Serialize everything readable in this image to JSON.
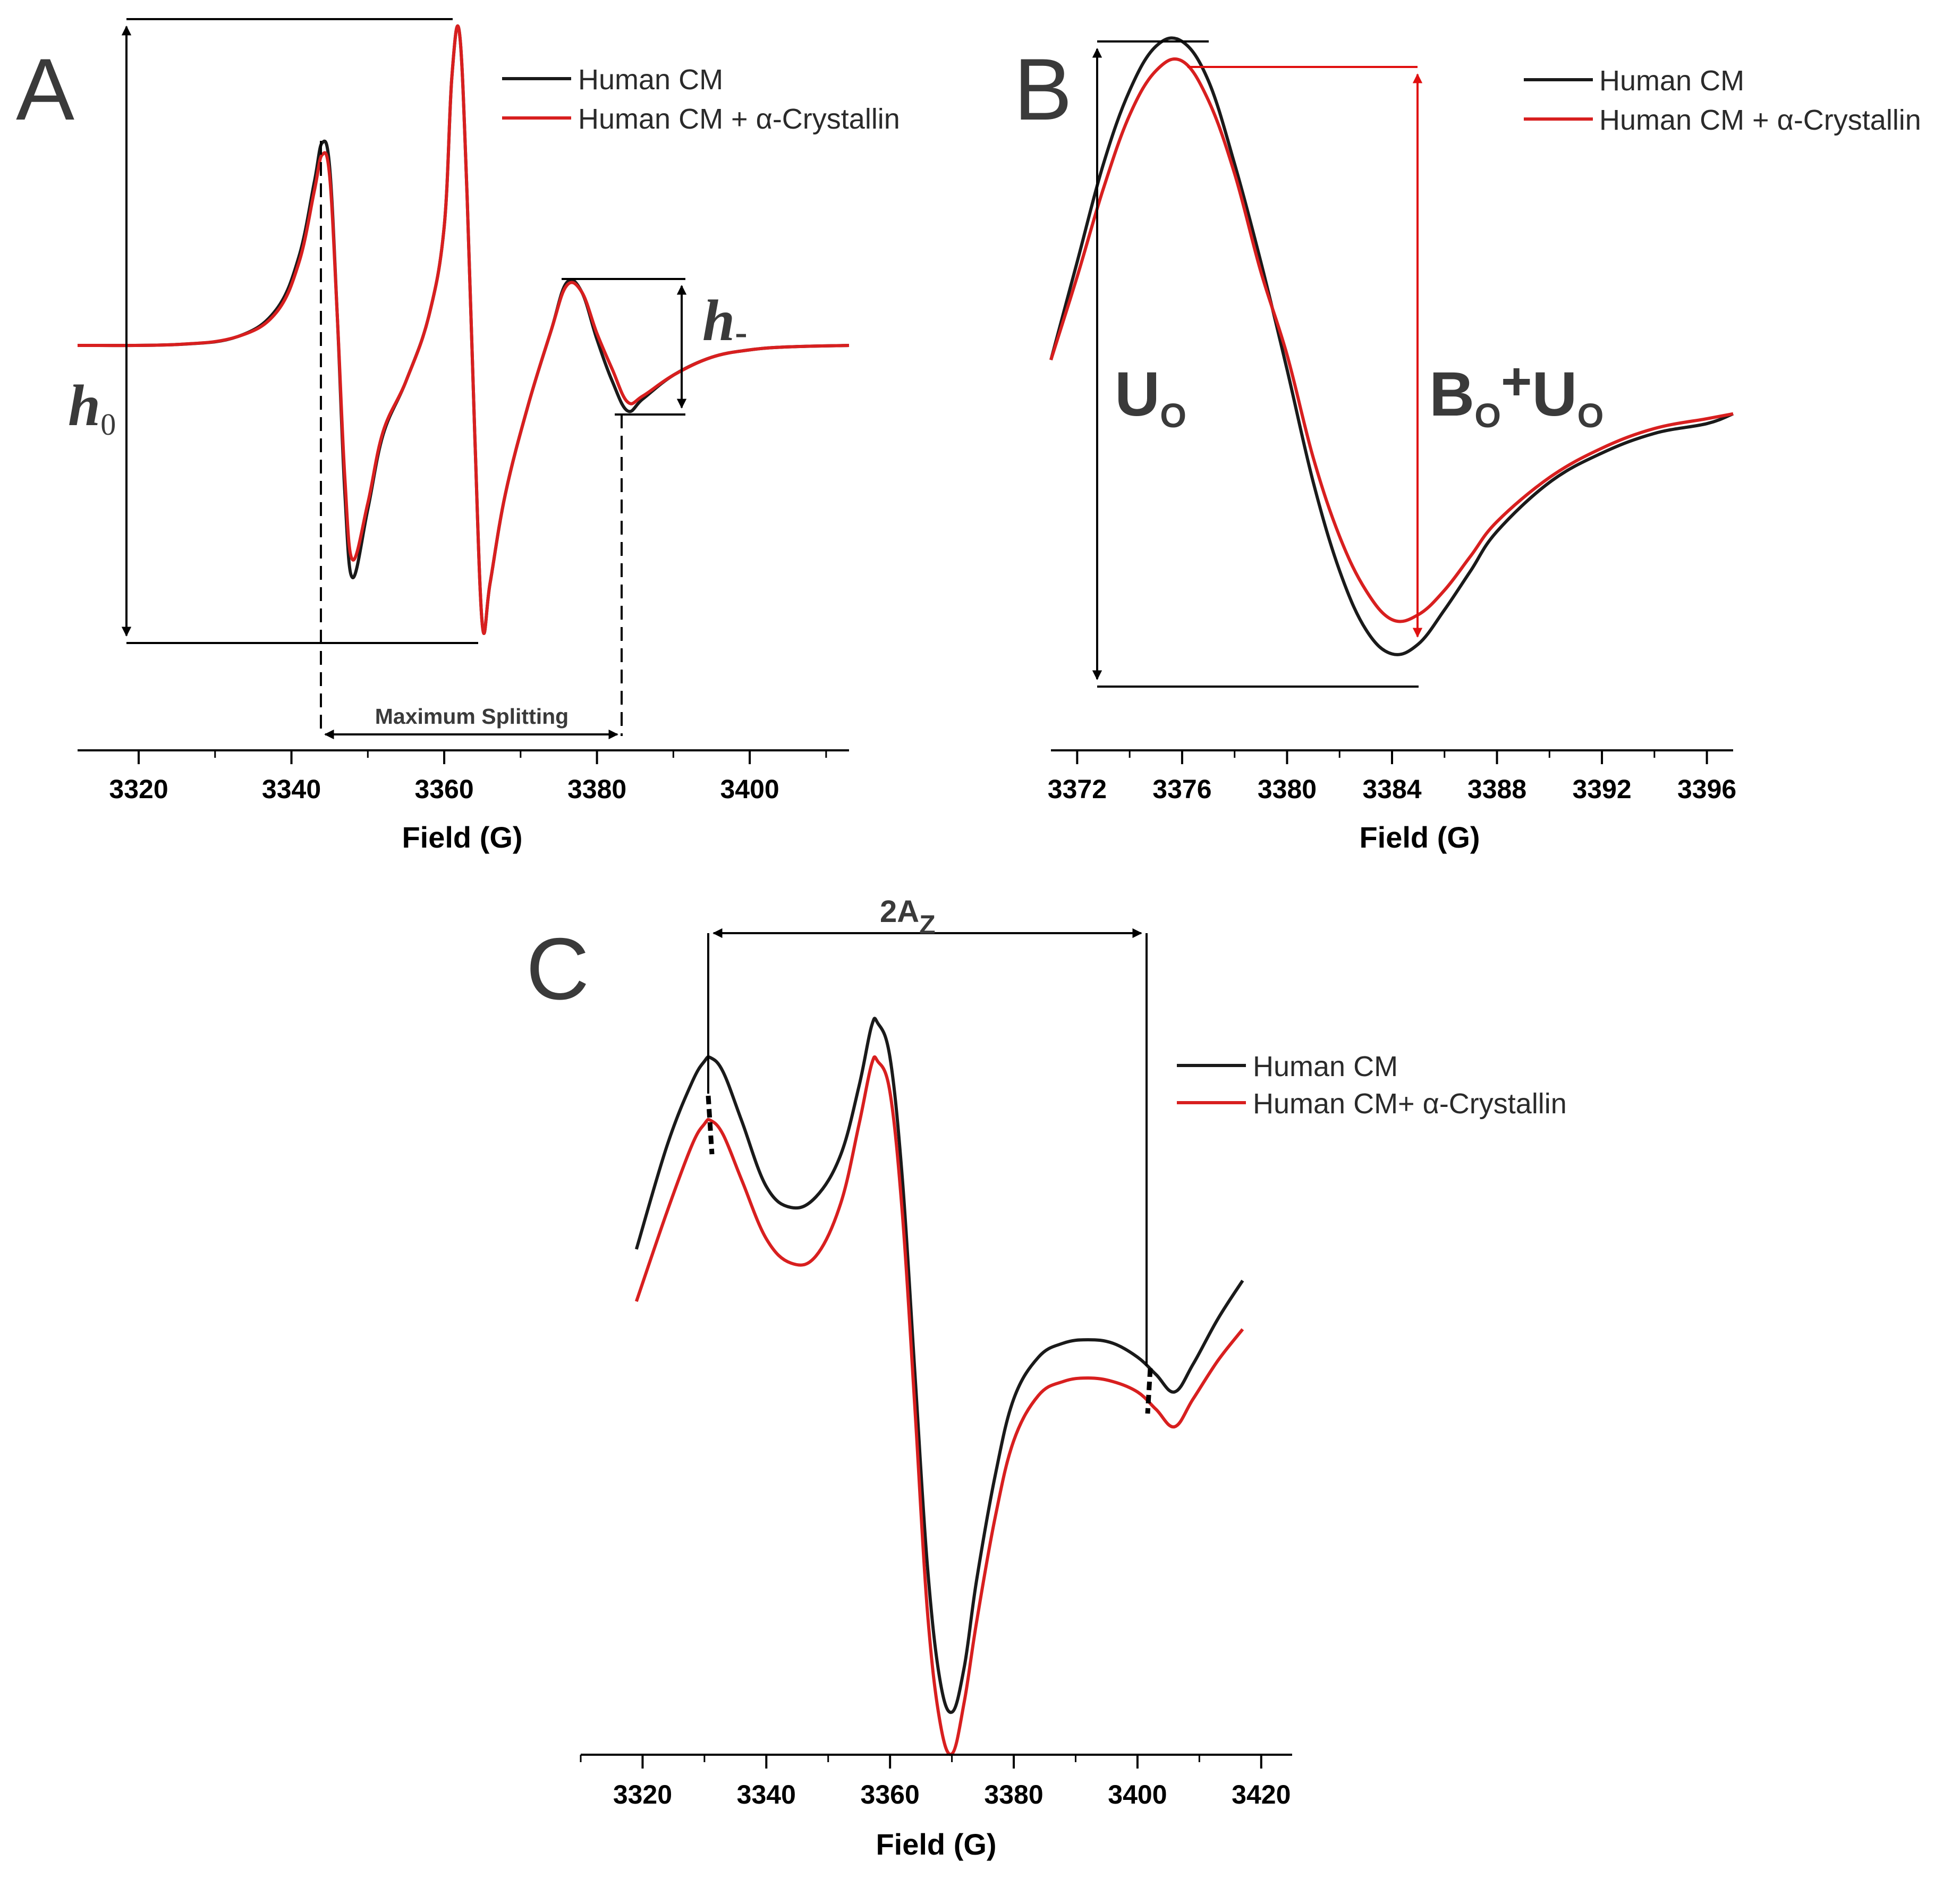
{
  "colors": {
    "human": "#1a1a1a",
    "crystallin": "#d81f1f",
    "axis": "#000000",
    "label": "#3a3a3a"
  },
  "chart_data": [
    {
      "panel": "A",
      "type": "line",
      "xlabel": "Field (G)",
      "xlim": [
        3312,
        3413
      ],
      "xticks": [
        3320,
        3340,
        3360,
        3380,
        3400
      ],
      "tick_labels": [
        "3320",
        "3340",
        "3360",
        "3380",
        "3400"
      ],
      "legend": [
        "Human CM",
        "Human CM + α-Crystallin"
      ],
      "legend_position": "top-right",
      "annotations": {
        "h0_main": "h",
        "h0_sub": "0",
        "hminus_main": "h",
        "hminus_sub": "-",
        "splitting": "Maximum Splitting"
      },
      "series": [
        {
          "name": "Human CM",
          "x": [
            3312,
            3325,
            3333,
            3338,
            3341,
            3343,
            3344,
            3345,
            3346,
            3347,
            3348,
            3350,
            3352,
            3355,
            3358,
            3360,
            3361,
            3362,
            3363,
            3364,
            3365,
            3366,
            3368,
            3371,
            3374,
            3376,
            3378,
            3380,
            3382,
            3384,
            3386,
            3390,
            3395,
            3400,
            3405,
            3413
          ],
          "y": [
            0,
            0.003,
            0.03,
            0.12,
            0.3,
            0.55,
            0.68,
            0.6,
            0.1,
            -0.5,
            -0.78,
            -0.55,
            -0.3,
            -0.12,
            0.1,
            0.4,
            0.9,
            1.05,
            0.5,
            -0.3,
            -0.94,
            -0.8,
            -0.5,
            -0.2,
            0.05,
            0.21,
            0.18,
            0.02,
            -0.12,
            -0.22,
            -0.18,
            -0.1,
            -0.04,
            -0.015,
            -0.005,
            0
          ]
        },
        {
          "name": "Human CM + α-Crystallin",
          "x": [
            3312,
            3325,
            3333,
            3338,
            3341,
            3343,
            3344,
            3345,
            3346,
            3347,
            3348,
            3350,
            3352,
            3355,
            3358,
            3360,
            3361,
            3362,
            3363,
            3364,
            3365,
            3366,
            3368,
            3371,
            3374,
            3376,
            3378,
            3380,
            3382,
            3384,
            3386,
            3390,
            3395,
            3400,
            3405,
            3413
          ],
          "y": [
            0,
            0.003,
            0.03,
            0.11,
            0.28,
            0.52,
            0.64,
            0.57,
            0.1,
            -0.45,
            -0.72,
            -0.53,
            -0.29,
            -0.12,
            0.1,
            0.4,
            0.9,
            1.05,
            0.5,
            -0.3,
            -0.94,
            -0.8,
            -0.5,
            -0.2,
            0.05,
            0.2,
            0.18,
            0.04,
            -0.08,
            -0.19,
            -0.17,
            -0.1,
            -0.04,
            -0.015,
            -0.005,
            0
          ]
        }
      ]
    },
    {
      "panel": "B",
      "type": "line",
      "xlabel": "Field (G)",
      "xlim": [
        3371,
        3397
      ],
      "xticks": [
        3372,
        3376,
        3380,
        3384,
        3388,
        3392,
        3396
      ],
      "tick_labels": [
        "3372",
        "3376",
        "3380",
        "3384",
        "3388",
        "3392",
        "3396"
      ],
      "legend": [
        "Human CM",
        "Human CM + α-Crystallin"
      ],
      "legend_position": "top-right",
      "annotations": {
        "u0_main": "U",
        "u0_sub": "O",
        "b0_main": "B",
        "b0_sub": "O",
        "plus": "+",
        "u1_main": "U",
        "u1_sub": "O"
      },
      "series": [
        {
          "name": "Human CM",
          "x": [
            3371,
            3372,
            3373,
            3374,
            3375,
            3376,
            3377,
            3378,
            3379,
            3380,
            3381,
            3382,
            3383,
            3384,
            3385,
            3386,
            3387,
            3388,
            3390,
            3392,
            3394,
            3396,
            3397
          ],
          "y": [
            0.35,
            0.55,
            0.75,
            0.9,
            0.99,
            1.0,
            0.92,
            0.75,
            0.55,
            0.33,
            0.1,
            -0.08,
            -0.2,
            -0.25,
            -0.23,
            -0.16,
            -0.08,
            0.0,
            0.1,
            0.16,
            0.2,
            0.22,
            0.24
          ]
        },
        {
          "name": "Human CM + α-Crystallin",
          "x": [
            3371,
            3372,
            3373,
            3374,
            3375,
            3376,
            3377,
            3378,
            3379,
            3380,
            3381,
            3382,
            3383,
            3384,
            3385,
            3386,
            3387,
            3388,
            3390,
            3392,
            3394,
            3396,
            3397
          ],
          "y": [
            0.35,
            0.52,
            0.7,
            0.85,
            0.94,
            0.96,
            0.88,
            0.73,
            0.53,
            0.36,
            0.15,
            -0.01,
            -0.12,
            -0.18,
            -0.17,
            -0.12,
            -0.05,
            0.02,
            0.11,
            0.17,
            0.21,
            0.23,
            0.24
          ]
        }
      ]
    },
    {
      "panel": "C",
      "type": "line",
      "xlabel": "Field (G)",
      "xlim": [
        3310,
        3425
      ],
      "xticks": [
        3320,
        3340,
        3360,
        3380,
        3400,
        3420
      ],
      "tick_labels": [
        "3320",
        "3340",
        "3360",
        "3380",
        "3400",
        "3420"
      ],
      "legend": [
        "Human CM",
        "Human CM+ α-Crystallin"
      ],
      "legend_position": "top-right",
      "annotations": {
        "az_main": "2A",
        "az_sub": "Z"
      },
      "series": [
        {
          "name": "Human CM",
          "x": [
            3319,
            3324,
            3328,
            3330,
            3331,
            3333,
            3336,
            3340,
            3344,
            3348,
            3352,
            3355,
            3357,
            3358,
            3360,
            3362,
            3364,
            3366,
            3368,
            3370,
            3372,
            3374,
            3377,
            3380,
            3384,
            3388,
            3392,
            3396,
            3400,
            3403,
            3406,
            3409,
            3413,
            3417
          ],
          "y": [
            0.35,
            0.65,
            0.83,
            0.89,
            0.9,
            0.86,
            0.72,
            0.53,
            0.47,
            0.5,
            0.62,
            0.82,
            0.99,
            1.0,
            0.9,
            0.55,
            0.0,
            -0.55,
            -0.88,
            -0.98,
            -0.85,
            -0.6,
            -0.3,
            -0.08,
            0.04,
            0.08,
            0.09,
            0.08,
            0.04,
            -0.01,
            -0.06,
            0.02,
            0.15,
            0.26
          ]
        },
        {
          "name": "Human CM+ α-Crystallin",
          "x": [
            3319,
            3324,
            3328,
            3330,
            3331,
            3333,
            3336,
            3340,
            3344,
            3348,
            3352,
            3355,
            3357,
            3358,
            3360,
            3362,
            3364,
            3366,
            3368,
            3370,
            3372,
            3374,
            3377,
            3380,
            3384,
            3388,
            3392,
            3396,
            3400,
            3403,
            3406,
            3409,
            3413,
            3417
          ],
          "y": [
            0.2,
            0.46,
            0.65,
            0.71,
            0.72,
            0.68,
            0.55,
            0.38,
            0.31,
            0.33,
            0.48,
            0.71,
            0.88,
            0.89,
            0.8,
            0.45,
            -0.1,
            -0.68,
            -1.0,
            -1.1,
            -0.95,
            -0.72,
            -0.42,
            -0.2,
            -0.07,
            -0.03,
            -0.02,
            -0.03,
            -0.06,
            -0.11,
            -0.16,
            -0.08,
            0.03,
            0.12
          ]
        }
      ]
    }
  ]
}
